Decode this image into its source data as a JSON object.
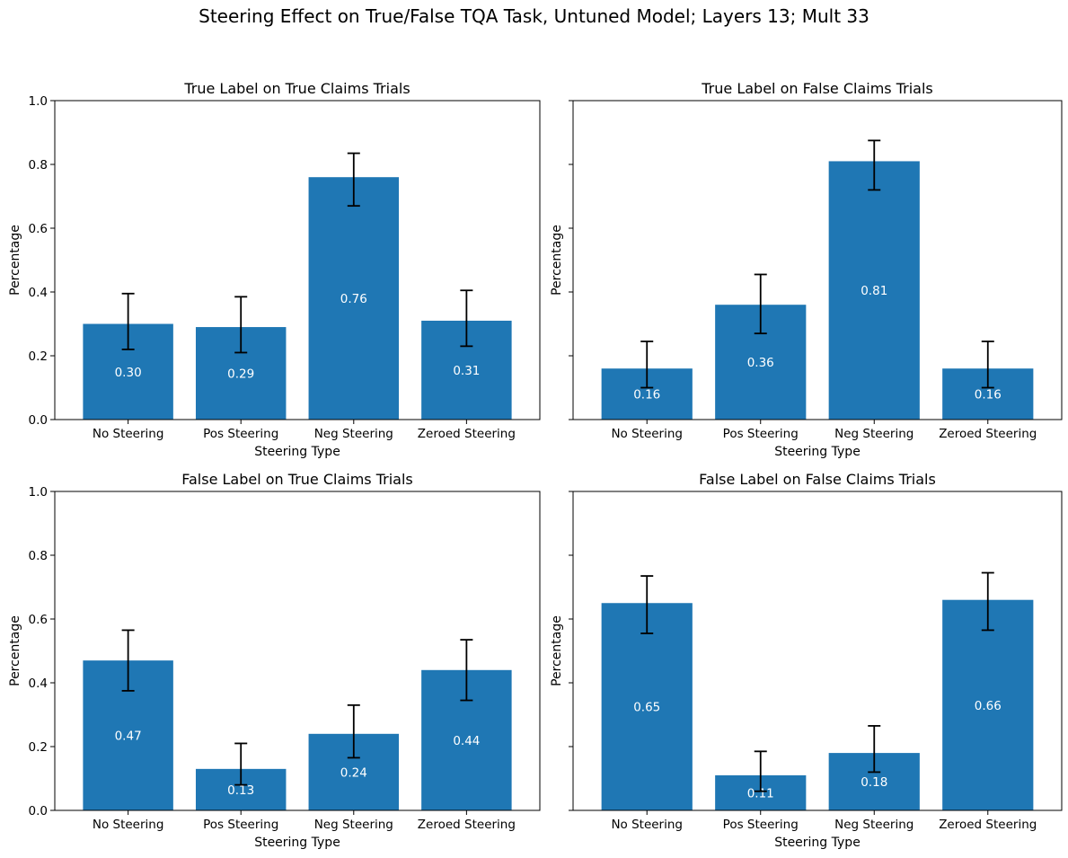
{
  "chart_data": {
    "suptitle": "Steering Effect on True/False TQA Task, Untuned Model; Layers 13; Mult 33",
    "bar_color": "#1f77b4",
    "error_bar_color": "#000000",
    "value_label_color": "#ffffff",
    "sharey": true,
    "grid": false,
    "subplots": [
      {
        "type": "bar",
        "title": "True Label on True Claims Trials",
        "xlabel": "Steering Type",
        "ylabel": "Percentage",
        "ylim": [
          0,
          1.0
        ],
        "yticks": [
          0.0,
          0.2,
          0.4,
          0.6,
          0.8,
          1.0
        ],
        "show_ytick_labels": true,
        "categories": [
          "No Steering",
          "Pos Steering",
          "Neg Steering",
          "Zeroed Steering"
        ],
        "values": [
          0.3,
          0.29,
          0.76,
          0.31
        ],
        "value_labels": [
          "0.30",
          "0.29",
          "0.76",
          "0.31"
        ],
        "err_low": [
          0.22,
          0.21,
          0.67,
          0.23
        ],
        "err_high": [
          0.395,
          0.385,
          0.835,
          0.405
        ]
      },
      {
        "type": "bar",
        "title": "True Label on False Claims Trials",
        "xlabel": "Steering Type",
        "ylabel": "Percentage",
        "ylim": [
          0,
          1.0
        ],
        "yticks": [
          0.0,
          0.2,
          0.4,
          0.6,
          0.8,
          1.0
        ],
        "show_ytick_labels": false,
        "categories": [
          "No Steering",
          "Pos Steering",
          "Neg Steering",
          "Zeroed Steering"
        ],
        "values": [
          0.16,
          0.36,
          0.81,
          0.16
        ],
        "value_labels": [
          "0.16",
          "0.36",
          "0.81",
          "0.16"
        ],
        "err_low": [
          0.1,
          0.27,
          0.72,
          0.1
        ],
        "err_high": [
          0.245,
          0.455,
          0.875,
          0.245
        ]
      },
      {
        "type": "bar",
        "title": "False Label on True Claims Trials",
        "xlabel": "Steering Type",
        "ylabel": "Percentage",
        "ylim": [
          0,
          1.0
        ],
        "yticks": [
          0.0,
          0.2,
          0.4,
          0.6,
          0.8,
          1.0
        ],
        "show_ytick_labels": true,
        "categories": [
          "No Steering",
          "Pos Steering",
          "Neg Steering",
          "Zeroed Steering"
        ],
        "values": [
          0.47,
          0.13,
          0.24,
          0.44
        ],
        "value_labels": [
          "0.47",
          "0.13",
          "0.24",
          "0.44"
        ],
        "err_low": [
          0.375,
          0.08,
          0.165,
          0.345
        ],
        "err_high": [
          0.565,
          0.21,
          0.33,
          0.535
        ]
      },
      {
        "type": "bar",
        "title": "False Label on False Claims Trials",
        "xlabel": "Steering Type",
        "ylabel": "Percentage",
        "ylim": [
          0,
          1.0
        ],
        "yticks": [
          0.0,
          0.2,
          0.4,
          0.6,
          0.8,
          1.0
        ],
        "show_ytick_labels": false,
        "categories": [
          "No Steering",
          "Pos Steering",
          "Neg Steering",
          "Zeroed Steering"
        ],
        "values": [
          0.65,
          0.11,
          0.18,
          0.66
        ],
        "value_labels": [
          "0.65",
          "0.11",
          "0.18",
          "0.66"
        ],
        "err_low": [
          0.555,
          0.06,
          0.12,
          0.565
        ],
        "err_high": [
          0.735,
          0.185,
          0.265,
          0.745
        ]
      }
    ]
  }
}
